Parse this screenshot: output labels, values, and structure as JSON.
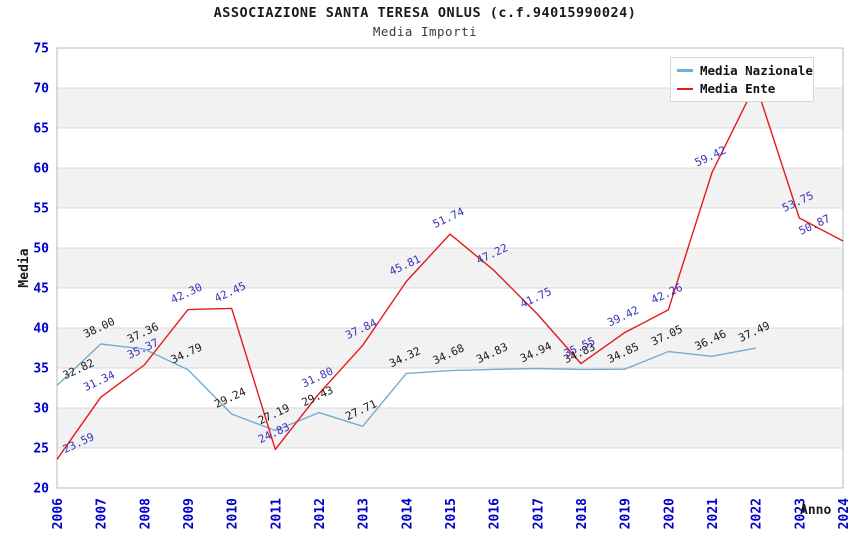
{
  "header": {
    "title": "ASSOCIAZIONE SANTA TERESA ONLUS (c.f.94015990024)",
    "subtitle": "Media Importi"
  },
  "legend": {
    "position": "top-right",
    "items": [
      {
        "label": "Media Nazionale",
        "color": "#74add1"
      },
      {
        "label": "Media Ente",
        "color": "#e41a1c"
      }
    ]
  },
  "chart_data": {
    "type": "line",
    "title": "Media Importi",
    "xlabel": "Anno",
    "ylabel": "Media",
    "ylim": [
      20,
      75
    ],
    "y_ticks": [
      75,
      70,
      65,
      60,
      55,
      50,
      45,
      40,
      35,
      30,
      25,
      20
    ],
    "grid": "alternating-horizontal-bands",
    "x": [
      2006,
      2007,
      2008,
      2009,
      2010,
      2011,
      2012,
      2013,
      2014,
      2015,
      2016,
      2017,
      2018,
      2019,
      2020,
      2021,
      2022,
      2023,
      2024
    ],
    "series": [
      {
        "name": "Media Nazionale",
        "color": "#74add1",
        "label_color": "#1a1a1a",
        "values": [
          32.82,
          38.0,
          37.36,
          34.79,
          29.24,
          27.19,
          29.43,
          27.71,
          34.32,
          34.68,
          34.83,
          34.94,
          34.83,
          34.85,
          37.05,
          36.46,
          37.49,
          null,
          null
        ],
        "hidden_label_years": []
      },
      {
        "name": "Media Ente",
        "color": "#e41a1c",
        "label_color": "#3333bb",
        "values": [
          23.59,
          31.34,
          35.37,
          42.3,
          42.45,
          24.83,
          31.8,
          37.84,
          45.81,
          51.74,
          47.22,
          41.75,
          35.55,
          39.42,
          42.26,
          59.42,
          70.5,
          53.75,
          50.87
        ],
        "hidden_label_years": [
          2022
        ]
      }
    ],
    "colors": {
      "axis_tick_labels": "#0000cc",
      "band_fill": "#f2f2f2",
      "gridline": "#d8d8d8",
      "plot_border": "#b8b8b8",
      "axis_title": "#1a1a1a"
    }
  }
}
